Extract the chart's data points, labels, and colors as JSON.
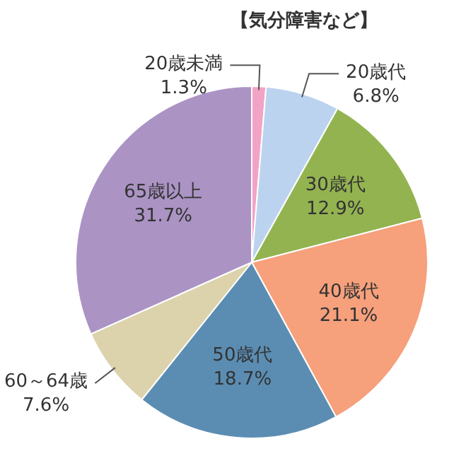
{
  "chart_data": {
    "type": "pie",
    "title": "【気分障害など】",
    "categories": [
      "20歳未満",
      "20歳代",
      "30歳代",
      "40歳代",
      "50歳代",
      "60～64歳",
      "65歳以上"
    ],
    "values": [
      1.3,
      6.8,
      12.9,
      21.1,
      18.7,
      7.6,
      31.7
    ],
    "colors": [
      "#f2a3c6",
      "#bcd3ef",
      "#93b350",
      "#f6a07c",
      "#5b8db3",
      "#dcd3ad",
      "#ab93c4"
    ],
    "value_labels": [
      "1.3%",
      "6.8%",
      "12.9%",
      "21.1%",
      "18.7%",
      "7.6%",
      "31.7%"
    ],
    "legend": false
  }
}
